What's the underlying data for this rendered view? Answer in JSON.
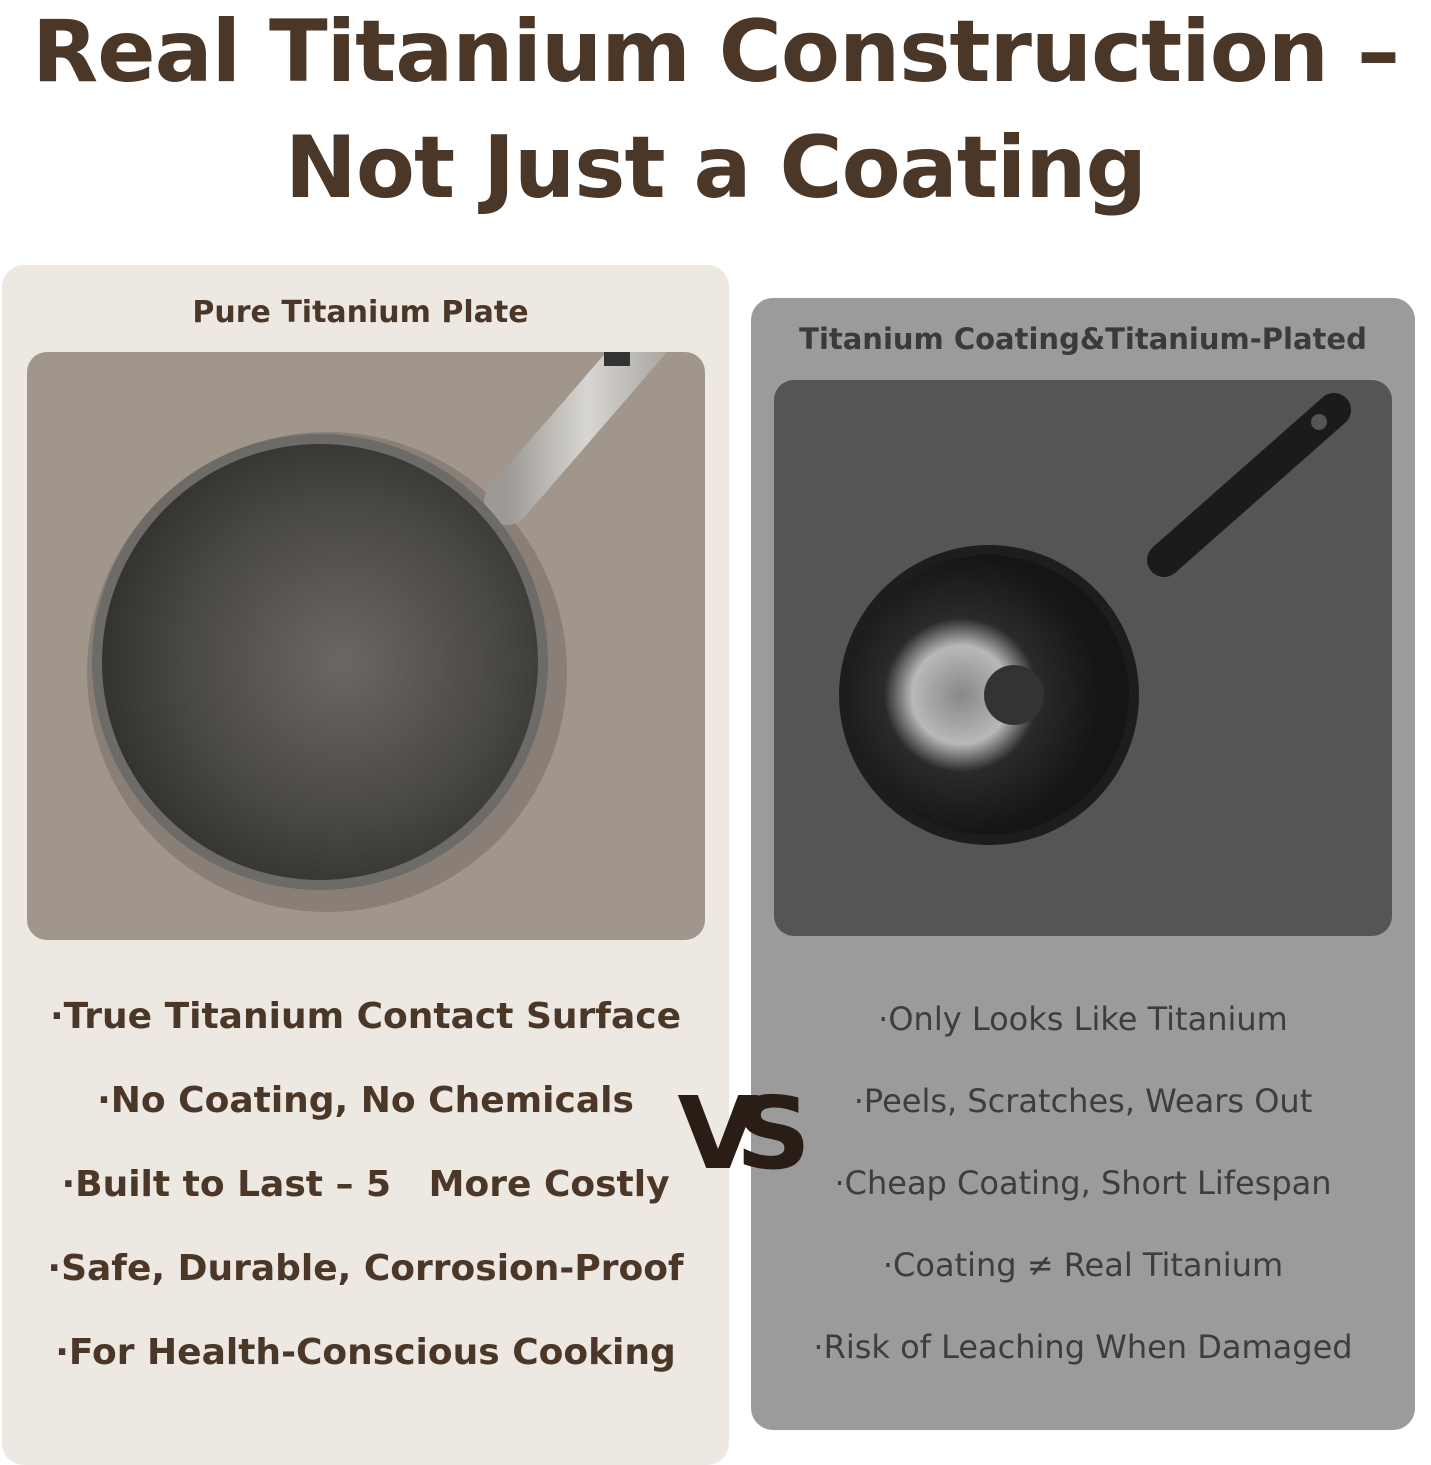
{
  "title": {
    "line1": "Real Titanium Construction –",
    "line2": "Not Just a Coating"
  },
  "left": {
    "heading": "Pure Titanium Plate",
    "features": [
      "·True Titanium Contact Surface",
      "·No Coating, No Chemicals",
      "·Built to Last – 5   More Costly",
      "·Safe, Durable, Corrosion-Proof",
      "·For Health-Conscious Cooking"
    ]
  },
  "vs": "VS",
  "right": {
    "heading": "Titanium Coating&Titanium-Plated",
    "features": [
      "·Only Looks Like Titanium",
      "·Peels, Scratches, Wears Out",
      "·Cheap Coating, Short Lifespan",
      "·Coating ≠ Real Titanium",
      "·Risk of Leaching When Damaged"
    ]
  },
  "colors": {
    "title": "#4b3727",
    "left_card": "#ede8e2",
    "right_card": "#9b9b9b"
  }
}
